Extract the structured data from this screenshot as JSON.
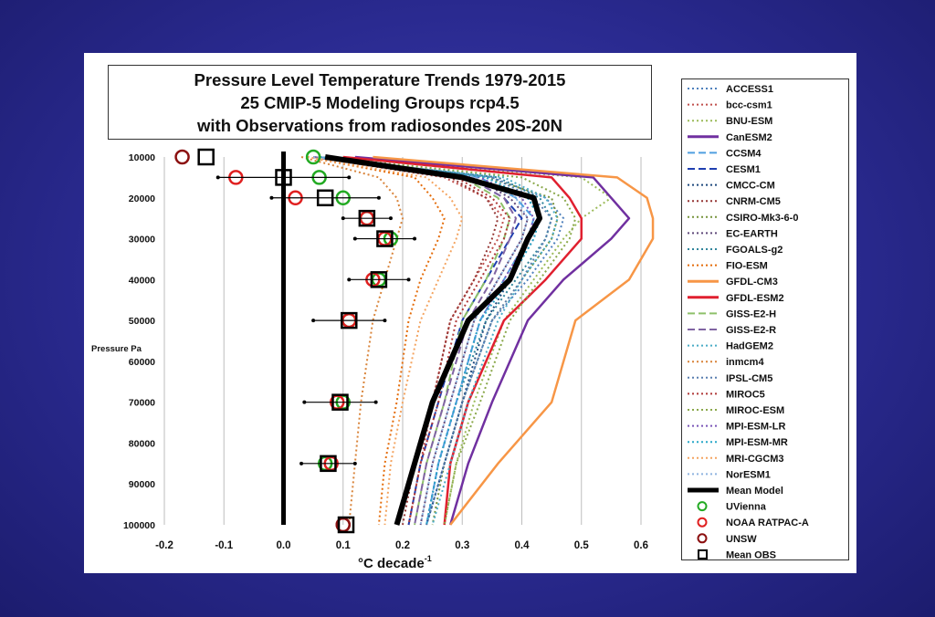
{
  "chart_data": {
    "type": "line",
    "title_lines": [
      "Pressure Level Temperature Trends 1979-2015",
      "25 CMIP-5 Modeling Groups rcp4.5",
      "with Observations from radiosondes 20S-20N"
    ],
    "xlabel": "°C decade",
    "xlabel_sup": "-1",
    "ylabel": "Pressure Pa",
    "xlim": [
      -0.2,
      0.6
    ],
    "ylim": [
      10000,
      100000
    ],
    "y_inverted": true,
    "grid": "vertical",
    "legend_position": "right",
    "x_ticks": [
      "-0.2",
      "-0.1",
      "0.0",
      "0.1",
      "0.2",
      "0.3",
      "0.4",
      "0.5",
      "0.6"
    ],
    "y_ticks": [
      "10000",
      "20000",
      "30000",
      "40000",
      "50000",
      "60000",
      "70000",
      "80000",
      "90000",
      "100000"
    ],
    "pressure_levels": [
      10000,
      15000,
      20000,
      25000,
      30000,
      40000,
      50000,
      70000,
      85000,
      100000
    ],
    "series": [
      {
        "name": "ACCESS1",
        "color": "#4f81bd",
        "dash": "dot",
        "values": [
          0.07,
          0.35,
          0.44,
          0.47,
          0.46,
          0.41,
          0.35,
          0.3,
          0.27,
          0.24
        ]
      },
      {
        "name": "bcc-csm1",
        "color": "#c0504d",
        "dash": "dot",
        "values": [
          0.05,
          0.27,
          0.34,
          0.37,
          0.36,
          0.32,
          0.28,
          0.25,
          0.23,
          0.21
        ]
      },
      {
        "name": "BNU-ESM",
        "color": "#9bbb59",
        "dash": "dot",
        "values": [
          0.1,
          0.5,
          0.55,
          0.5,
          0.47,
          0.42,
          0.37,
          0.32,
          0.29,
          0.27
        ]
      },
      {
        "name": "CanESM2",
        "color": "#7030a0",
        "dash": "solid",
        "values": [
          0.12,
          0.52,
          0.55,
          0.58,
          0.55,
          0.47,
          0.41,
          0.35,
          0.31,
          0.28
        ]
      },
      {
        "name": "CCSM4",
        "color": "#4f9fe0",
        "dash": "dash",
        "values": [
          0.06,
          0.33,
          0.39,
          0.42,
          0.41,
          0.37,
          0.33,
          0.29,
          0.26,
          0.24
        ]
      },
      {
        "name": "CESM1",
        "color": "#1f3fb0",
        "dash": "dash",
        "values": [
          0.05,
          0.31,
          0.37,
          0.4,
          0.38,
          0.34,
          0.3,
          0.26,
          0.23,
          0.21
        ]
      },
      {
        "name": "CMCC-CM",
        "color": "#1f497d",
        "dash": "dot",
        "values": [
          0.06,
          0.34,
          0.41,
          0.43,
          0.42,
          0.38,
          0.34,
          0.3,
          0.27,
          0.24
        ]
      },
      {
        "name": "CNRM-CM5",
        "color": "#953735",
        "dash": "dot",
        "values": [
          0.05,
          0.28,
          0.34,
          0.36,
          0.35,
          0.32,
          0.28,
          0.25,
          0.22,
          0.2
        ]
      },
      {
        "name": "CSIRO-Mk3-6-0",
        "color": "#77933c",
        "dash": "dot",
        "values": [
          0.06,
          0.34,
          0.45,
          0.46,
          0.45,
          0.4,
          0.35,
          0.3,
          0.27,
          0.25
        ]
      },
      {
        "name": "EC-EARTH",
        "color": "#604a7b",
        "dash": "dot",
        "values": [
          0.05,
          0.32,
          0.38,
          0.41,
          0.4,
          0.36,
          0.32,
          0.28,
          0.25,
          0.23
        ]
      },
      {
        "name": "FGOALS-g2",
        "color": "#31859c",
        "dash": "dot",
        "values": [
          0.05,
          0.36,
          0.43,
          0.45,
          0.44,
          0.39,
          0.34,
          0.29,
          0.26,
          0.24
        ]
      },
      {
        "name": "FIO-ESM",
        "color": "#e46c0a",
        "dash": "dot",
        "values": [
          0.04,
          0.22,
          0.25,
          0.27,
          0.26,
          0.23,
          0.21,
          0.19,
          0.17,
          0.16
        ]
      },
      {
        "name": "GFDL-CM3",
        "color": "#f79646",
        "dash": "solid",
        "values": [
          0.15,
          0.56,
          0.61,
          0.62,
          0.62,
          0.58,
          0.49,
          0.45,
          0.36,
          0.28
        ]
      },
      {
        "name": "GFDL-ESM2",
        "color": "#e0202f",
        "dash": "solid",
        "values": [
          0.1,
          0.45,
          0.48,
          0.5,
          0.5,
          0.44,
          0.37,
          0.31,
          0.28,
          0.27
        ]
      },
      {
        "name": "GISS-E2-H",
        "color": "#8ec06a",
        "dash": "dash",
        "values": [
          0.05,
          0.3,
          0.36,
          0.38,
          0.37,
          0.34,
          0.3,
          0.27,
          0.24,
          0.22
        ]
      },
      {
        "name": "GISS-E2-R",
        "color": "#8064a2",
        "dash": "dash",
        "values": [
          0.05,
          0.31,
          0.37,
          0.39,
          0.38,
          0.35,
          0.31,
          0.27,
          0.24,
          0.22
        ]
      },
      {
        "name": "HadGEM2",
        "color": "#4bacc6",
        "dash": "dot",
        "values": [
          0.07,
          0.37,
          0.44,
          0.46,
          0.45,
          0.4,
          0.36,
          0.31,
          0.28,
          0.25
        ]
      },
      {
        "name": "inmcm4",
        "color": "#d9843a",
        "dash": "dot",
        "values": [
          0.03,
          0.16,
          0.19,
          0.2,
          0.19,
          0.17,
          0.15,
          0.13,
          0.12,
          0.11
        ]
      },
      {
        "name": "IPSL-CM5",
        "color": "#5a7fb0",
        "dash": "dot",
        "values": [
          0.06,
          0.35,
          0.42,
          0.45,
          0.44,
          0.4,
          0.35,
          0.3,
          0.27,
          0.24
        ]
      },
      {
        "name": "MIROC5",
        "color": "#b03a3a",
        "dash": "dot",
        "values": [
          0.05,
          0.29,
          0.35,
          0.38,
          0.37,
          0.33,
          0.29,
          0.26,
          0.23,
          0.21
        ]
      },
      {
        "name": "MIROC-ESM",
        "color": "#8aa84a",
        "dash": "dot",
        "values": [
          0.07,
          0.4,
          0.47,
          0.49,
          0.48,
          0.43,
          0.38,
          0.33,
          0.29,
          0.27
        ]
      },
      {
        "name": "MPI-ESM-LR",
        "color": "#7a55b8",
        "dash": "dot",
        "values": [
          0.06,
          0.33,
          0.4,
          0.42,
          0.41,
          0.37,
          0.33,
          0.29,
          0.26,
          0.24
        ]
      },
      {
        "name": "MPI-ESM-MR",
        "color": "#2aa8c8",
        "dash": "dot",
        "values": [
          0.06,
          0.34,
          0.41,
          0.43,
          0.42,
          0.38,
          0.33,
          0.29,
          0.26,
          0.24
        ]
      },
      {
        "name": "MRI-CGCM3",
        "color": "#f4a460",
        "dash": "dot",
        "values": [
          0.04,
          0.24,
          0.28,
          0.3,
          0.29,
          0.26,
          0.23,
          0.2,
          0.18,
          0.17
        ]
      },
      {
        "name": "NorESM1",
        "color": "#8fb4e0",
        "dash": "dot",
        "values": [
          0.05,
          0.32,
          0.39,
          0.41,
          0.4,
          0.36,
          0.32,
          0.28,
          0.25,
          0.23
        ]
      },
      {
        "name": "Mean Model",
        "color": "#000000",
        "dash": "thick",
        "values": [
          0.07,
          0.3,
          0.42,
          0.43,
          0.41,
          0.38,
          0.31,
          0.25,
          0.22,
          0.19
        ]
      }
    ],
    "observations": [
      {
        "name": "UVienna",
        "color": "#22aa22",
        "marker": "circle",
        "x": [
          0.05,
          0.06,
          0.1,
          0.14,
          0.18,
          0.16,
          0.11,
          0.1,
          0.07
        ],
        "p": [
          10000,
          15000,
          20000,
          25000,
          30000,
          40000,
          50000,
          70000,
          85000
        ]
      },
      {
        "name": "NOAA RATPAC-A",
        "color": "#e02020",
        "marker": "circle",
        "x": [
          null,
          -0.08,
          0.02,
          0.14,
          0.17,
          0.15,
          0.11,
          0.09,
          0.08,
          0.1
        ],
        "p": [
          10000,
          15000,
          20000,
          25000,
          30000,
          40000,
          50000,
          70000,
          85000,
          100000
        ]
      },
      {
        "name": "UNSW",
        "color": "#8b1010",
        "marker": "circle",
        "x": [
          -0.17,
          null,
          null,
          null,
          null,
          null,
          null,
          null,
          null,
          0.1
        ],
        "p": [
          10000,
          15000,
          20000,
          25000,
          30000,
          40000,
          50000,
          70000,
          85000,
          100000
        ]
      },
      {
        "name": "Mean OBS",
        "color": "#000000",
        "marker": "square",
        "x": [
          -0.13,
          0.0,
          0.07,
          0.14,
          0.17,
          0.16,
          0.11,
          0.095,
          0.075,
          0.105
        ],
        "p": [
          10000,
          15000,
          20000,
          25000,
          30000,
          40000,
          50000,
          70000,
          85000,
          100000
        ],
        "err": [
          0,
          0.11,
          0.09,
          0.04,
          0.05,
          0.05,
          0.06,
          0.06,
          0.045,
          0
        ]
      }
    ]
  }
}
